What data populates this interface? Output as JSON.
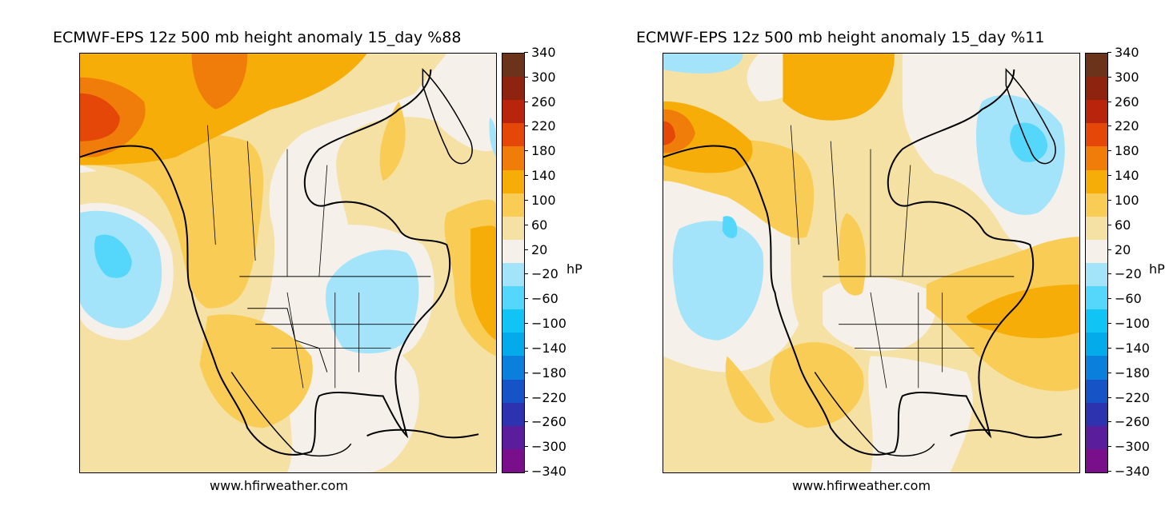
{
  "panels": [
    {
      "title": "ECMWF-EPS 12z 500 mb height anomaly 15_day %88",
      "credit": "www.hfirweather.com",
      "unit": "hP"
    },
    {
      "title": "ECMWF-EPS 12z 500 mb height anomaly 15_day %11",
      "credit": "www.hfirweather.com",
      "unit": "hP"
    }
  ],
  "colorbar": {
    "ticks": [
      "340",
      "300",
      "260",
      "220",
      "180",
      "140",
      "100",
      "60",
      "20",
      "−20",
      "−60",
      "−100",
      "−140",
      "−180",
      "−220",
      "−260",
      "−300",
      "−340"
    ],
    "colors_top_to_bottom": [
      "#6b3319",
      "#8e2410",
      "#b8250c",
      "#e54708",
      "#f07d0a",
      "#f6ad08",
      "#f9cd55",
      "#f5e1a4",
      "#f5f1ea",
      "#a4e4fb",
      "#55d6fb",
      "#10c5f6",
      "#04abeb",
      "#0a7fdc",
      "#1553c6",
      "#2d33ae",
      "#5a1e9c",
      "#7a0f8c"
    ]
  },
  "map_colors": {
    "neutral": "#f5f1ea",
    "pos_20_60": "#f5e1a4",
    "pos_60_100": "#f9cd55",
    "pos_100_140": "#f6ad08",
    "pos_140_180": "#f07d0a",
    "pos_180_220": "#e54708",
    "neg_20_60": "#a4e4fb",
    "neg_60_100": "#55d6fb"
  }
}
